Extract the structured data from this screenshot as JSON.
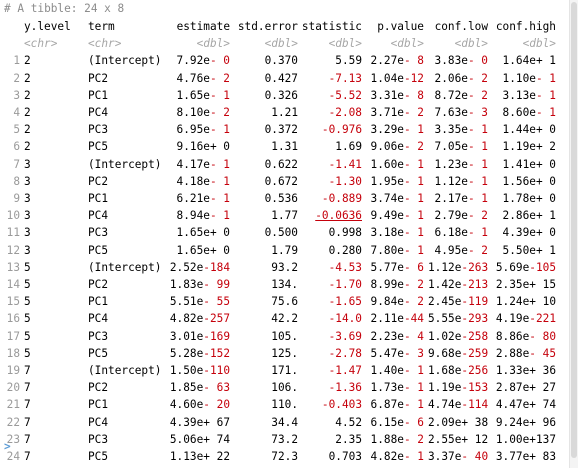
{
  "colors": {
    "negative": "#c5000b",
    "prompt": "#5b9bd5",
    "muted": "#8c8c8c"
  },
  "header": "# A tibble: 24 x 8",
  "columns": [
    "y.level",
    "term",
    "estimate",
    "std.error",
    "statistic",
    "p.value",
    "conf.low",
    "conf.high"
  ],
  "types": [
    "<chr>",
    "<chr>",
    "<dbl>",
    "<dbl>",
    "<dbl>",
    "<dbl>",
    "<dbl>",
    "<dbl>"
  ],
  "rows": [
    [
      "1",
      "2",
      "(Intercept)",
      "7.92e- 0",
      "0.370",
      "5.59",
      "2.27e- 8",
      "3.83e- 0",
      "1.64e+ 1"
    ],
    [
      "2",
      "2",
      "PC2",
      "4.76e- 2",
      "0.427",
      "-7.13",
      "1.04e-12",
      "2.06e- 2",
      "1.10e- 1"
    ],
    [
      "3",
      "2",
      "PC1",
      "1.65e- 1",
      "0.326",
      "-5.52",
      "3.31e- 8",
      "8.72e- 2",
      "3.13e- 1"
    ],
    [
      "4",
      "2",
      "PC4",
      "8.10e- 2",
      "1.21",
      "-2.08",
      "3.71e- 2",
      "7.63e- 3",
      "8.60e- 1"
    ],
    [
      "5",
      "2",
      "PC3",
      "6.95e- 1",
      "0.372",
      "-0.976",
      "3.29e- 1",
      "3.35e- 1",
      "1.44e+ 0"
    ],
    [
      "6",
      "2",
      "PC5",
      "9.16e+ 0",
      "1.31",
      "1.69",
      "9.06e- 2",
      "7.05e- 1",
      "1.19e+ 2"
    ],
    [
      "7",
      "3",
      "(Intercept)",
      "4.17e- 1",
      "0.622",
      "-1.41",
      "1.60e- 1",
      "1.23e- 1",
      "1.41e+ 0"
    ],
    [
      "8",
      "3",
      "PC2",
      "4.18e- 1",
      "0.672",
      "-1.30",
      "1.95e- 1",
      "1.12e- 1",
      "1.56e+ 0"
    ],
    [
      "9",
      "3",
      "PC1",
      "6.21e- 1",
      "0.536",
      "-0.889",
      "3.74e- 1",
      "2.17e- 1",
      "1.78e+ 0"
    ],
    [
      "10",
      "3",
      "PC4",
      "8.94e- 1",
      "1.77",
      "-0.0636",
      "9.49e- 1",
      "2.79e- 2",
      "2.86e+ 1"
    ],
    [
      "11",
      "3",
      "PC3",
      "1.65e+ 0",
      "0.500",
      "0.998",
      "3.18e- 1",
      "6.18e- 1",
      "4.39e+ 0"
    ],
    [
      "12",
      "3",
      "PC5",
      "1.65e+ 0",
      "1.79",
      "0.280",
      "7.80e- 1",
      "4.95e- 2",
      "5.50e+ 1"
    ],
    [
      "13",
      "5",
      "(Intercept)",
      "2.52e-184",
      "93.2",
      "-4.53",
      "5.77e- 6",
      "1.12e-263",
      "5.69e-105"
    ],
    [
      "14",
      "5",
      "PC2",
      "1.83e- 99",
      "134.",
      "-1.70",
      "8.99e- 2",
      "1.42e-213",
      "2.35e+ 15"
    ],
    [
      "15",
      "5",
      "PC1",
      "5.51e- 55",
      "75.6",
      "-1.65",
      "9.84e- 2",
      "2.45e-119",
      "1.24e+ 10"
    ],
    [
      "16",
      "5",
      "PC4",
      "4.82e-257",
      "42.2",
      "-14.0",
      "2.11e-44",
      "5.55e-293",
      "4.19e-221"
    ],
    [
      "17",
      "5",
      "PC3",
      "3.01e-169",
      "105.",
      "-3.69",
      "2.23e- 4",
      "1.02e-258",
      "8.86e- 80"
    ],
    [
      "18",
      "5",
      "PC5",
      "5.28e-152",
      "125.",
      "-2.78",
      "5.47e- 3",
      "9.68e-259",
      "2.88e- 45"
    ],
    [
      "19",
      "7",
      "(Intercept)",
      "1.50e-110",
      "171.",
      "-1.47",
      "1.40e- 1",
      "1.68e-256",
      "1.33e+ 36"
    ],
    [
      "20",
      "7",
      "PC2",
      "1.85e- 63",
      "106.",
      "-1.36",
      "1.73e- 1",
      "1.19e-153",
      "2.87e+ 27"
    ],
    [
      "21",
      "7",
      "PC1",
      "4.60e- 20",
      "110.",
      "-0.403",
      "6.87e- 1",
      "4.74e-114",
      "4.47e+ 74"
    ],
    [
      "22",
      "7",
      "PC4",
      "4.39e+ 67",
      "34.4",
      "4.52",
      "6.15e- 6",
      "2.09e+ 38",
      "9.24e+ 96"
    ],
    [
      "23",
      "7",
      "PC3",
      "5.06e+ 74",
      "73.2",
      "2.35",
      "1.88e- 2",
      "2.55e+ 12",
      "1.00e+137"
    ],
    [
      "24",
      "7",
      "PC5",
      "1.13e+ 22",
      "72.3",
      "0.703",
      "4.82e- 1",
      "3.37e- 40",
      "3.77e+ 83"
    ]
  ],
  "prompt": ">"
}
